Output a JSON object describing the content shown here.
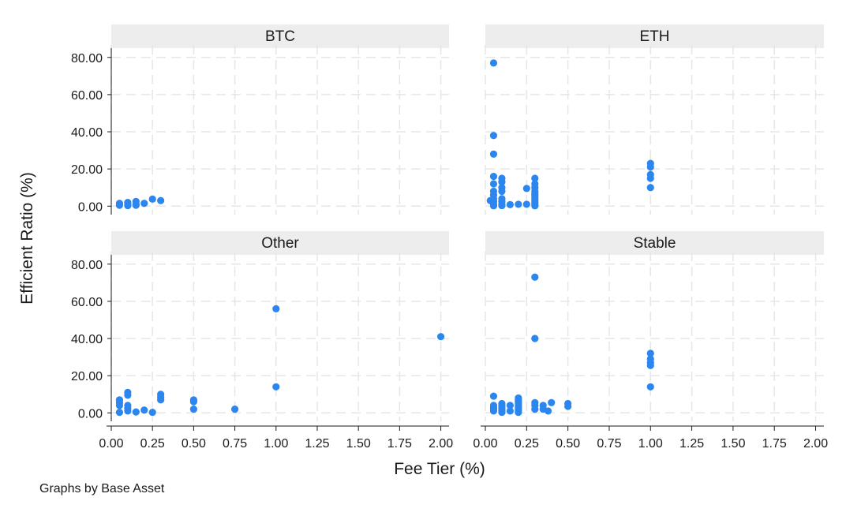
{
  "chart_data": {
    "type": "scatter",
    "xlabel": "Fee Tier (%)",
    "ylabel": "Efficient Ratio (%)",
    "note": "Graphs by Base Asset",
    "xlim": [
      0,
      2.05
    ],
    "ylim": [
      -2,
      85
    ],
    "xticks": [
      "0.00",
      "0.25",
      "0.50",
      "0.75",
      "1.00",
      "1.25",
      "1.50",
      "1.75",
      "2.00"
    ],
    "xtick_values": [
      0,
      0.25,
      0.5,
      0.75,
      1.0,
      1.25,
      1.5,
      1.75,
      2.0
    ],
    "yticks": [
      "0.00",
      "20.00",
      "40.00",
      "60.00",
      "80.00"
    ],
    "ytick_values": [
      0,
      20,
      40,
      60,
      80
    ],
    "grid": true,
    "marker_color": "#2b87ef",
    "panels": [
      {
        "title": "BTC",
        "points": [
          [
            0.05,
            0.5
          ],
          [
            0.05,
            1.5
          ],
          [
            0.1,
            0.3
          ],
          [
            0.1,
            1.0
          ],
          [
            0.1,
            2.0
          ],
          [
            0.15,
            0.5
          ],
          [
            0.15,
            1.2
          ],
          [
            0.15,
            2.5
          ],
          [
            0.2,
            1.5
          ],
          [
            0.25,
            3.8
          ],
          [
            0.3,
            3.0
          ]
        ]
      },
      {
        "title": "ETH",
        "points": [
          [
            0.05,
            77
          ],
          [
            0.05,
            38
          ],
          [
            0.05,
            28
          ],
          [
            0.05,
            16
          ],
          [
            0.05,
            12
          ],
          [
            0.05,
            8
          ],
          [
            0.05,
            6
          ],
          [
            0.05,
            4
          ],
          [
            0.05,
            2.5
          ],
          [
            0.05,
            1
          ],
          [
            0.05,
            0.2
          ],
          [
            0.03,
            3
          ],
          [
            0.1,
            15
          ],
          [
            0.1,
            13
          ],
          [
            0.1,
            10
          ],
          [
            0.1,
            8
          ],
          [
            0.1,
            4
          ],
          [
            0.1,
            2.5
          ],
          [
            0.1,
            1
          ],
          [
            0.1,
            0.3
          ],
          [
            0.15,
            0.8
          ],
          [
            0.2,
            1
          ],
          [
            0.25,
            1
          ],
          [
            0.25,
            9.5
          ],
          [
            0.3,
            15
          ],
          [
            0.3,
            12
          ],
          [
            0.3,
            10
          ],
          [
            0.3,
            8
          ],
          [
            0.3,
            7
          ],
          [
            0.3,
            6
          ],
          [
            0.3,
            5
          ],
          [
            0.3,
            4
          ],
          [
            0.3,
            3
          ],
          [
            0.3,
            2
          ],
          [
            0.3,
            1
          ],
          [
            0.3,
            0.2
          ],
          [
            1.0,
            23
          ],
          [
            1.0,
            21
          ],
          [
            1.0,
            17
          ],
          [
            1.0,
            15
          ],
          [
            1.0,
            10
          ]
        ]
      },
      {
        "title": "Other",
        "points": [
          [
            0.05,
            7
          ],
          [
            0.05,
            5.5
          ],
          [
            0.05,
            4
          ],
          [
            0.05,
            0.3
          ],
          [
            0.1,
            11
          ],
          [
            0.1,
            9.5
          ],
          [
            0.1,
            4
          ],
          [
            0.1,
            2.5
          ],
          [
            0.1,
            1
          ],
          [
            0.15,
            0.5
          ],
          [
            0.2,
            1.5
          ],
          [
            0.25,
            0.3
          ],
          [
            0.3,
            10
          ],
          [
            0.3,
            8.5
          ],
          [
            0.3,
            7
          ],
          [
            0.5,
            7
          ],
          [
            0.5,
            6
          ],
          [
            0.5,
            2
          ],
          [
            0.75,
            2
          ],
          [
            1.0,
            56
          ],
          [
            1.0,
            14
          ],
          [
            2.0,
            41
          ]
        ]
      },
      {
        "title": "Stable",
        "points": [
          [
            0.05,
            9
          ],
          [
            0.05,
            4
          ],
          [
            0.05,
            3
          ],
          [
            0.05,
            2
          ],
          [
            0.05,
            1
          ],
          [
            0.1,
            5
          ],
          [
            0.1,
            4
          ],
          [
            0.1,
            3
          ],
          [
            0.1,
            2
          ],
          [
            0.1,
            1
          ],
          [
            0.1,
            0.3
          ],
          [
            0.15,
            4
          ],
          [
            0.15,
            1
          ],
          [
            0.2,
            8
          ],
          [
            0.2,
            7
          ],
          [
            0.2,
            6
          ],
          [
            0.2,
            5
          ],
          [
            0.2,
            4
          ],
          [
            0.2,
            3
          ],
          [
            0.2,
            2
          ],
          [
            0.2,
            1
          ],
          [
            0.2,
            0.3
          ],
          [
            0.3,
            73
          ],
          [
            0.3,
            40
          ],
          [
            0.3,
            5.5
          ],
          [
            0.3,
            4
          ],
          [
            0.3,
            2
          ],
          [
            0.35,
            4
          ],
          [
            0.35,
            2
          ],
          [
            0.38,
            1
          ],
          [
            0.4,
            5.5
          ],
          [
            0.5,
            5
          ],
          [
            0.5,
            3.5
          ],
          [
            1.0,
            32
          ],
          [
            1.0,
            29
          ],
          [
            1.0,
            27
          ],
          [
            1.0,
            25.5
          ],
          [
            1.0,
            14
          ]
        ]
      }
    ]
  }
}
